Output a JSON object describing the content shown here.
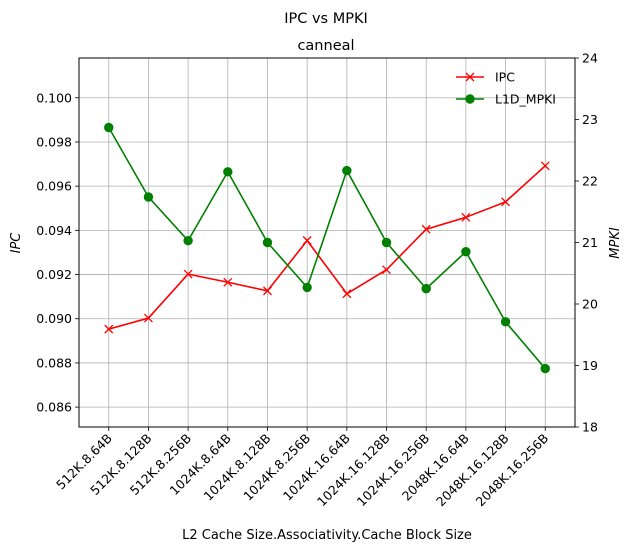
{
  "figure": {
    "suptitle": "IPC vs MPKI",
    "title": "canneal",
    "xlabel": "L2 Cache Size.Associativity.Cache Block Size",
    "ylabel_left": "IPC",
    "ylabel_right": "MPKI"
  },
  "chart_data": {
    "type": "line",
    "categories": [
      "512K.8.64B",
      "512K.8.128B",
      "512K.8.256B",
      "1024K.8.64B",
      "1024K.8.128B",
      "1024K.8.256B",
      "1024K.16.64B",
      "1024K.16.128B",
      "1024K.16.256B",
      "2048K.16.64B",
      "2048K.16.128B",
      "2048K.16.256B"
    ],
    "series": [
      {
        "name": "IPC",
        "axis": "left",
        "color": "#ff0000",
        "marker": "x",
        "values": [
          0.08953,
          0.09003,
          0.09202,
          0.09165,
          0.09126,
          0.09354,
          0.09113,
          0.09222,
          0.09405,
          0.09459,
          0.09529,
          0.09692
        ]
      },
      {
        "name": "L1D_MPKI",
        "axis": "right",
        "color": "#008000",
        "marker": "o",
        "values": [
          22.87,
          21.74,
          21.03,
          22.15,
          21.0,
          20.27,
          22.17,
          21.0,
          20.25,
          20.85,
          19.71,
          18.95
        ]
      }
    ],
    "ylim_left": [
      0.0851,
      0.1018
    ],
    "yticks_left": [
      "0.086",
      "0.088",
      "0.090",
      "0.092",
      "0.094",
      "0.096",
      "0.098",
      "0.100"
    ],
    "ylim_right": [
      18,
      24
    ],
    "yticks_right": [
      "18",
      "19",
      "20",
      "21",
      "22",
      "23",
      "24"
    ],
    "grid": true,
    "legend_position": "top-right"
  }
}
